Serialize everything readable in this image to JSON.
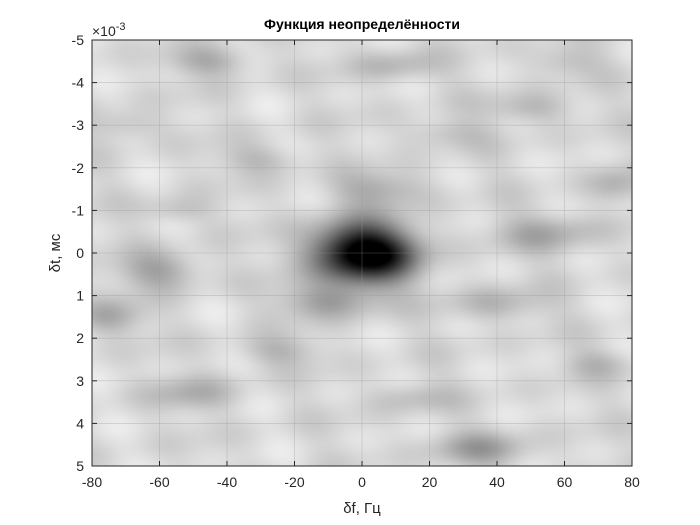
{
  "chart_data": {
    "type": "heatmap",
    "title": "Функция неопределённости",
    "xlabel": "δf, Гц",
    "ylabel": "δt, мс",
    "xlim": [
      -80,
      80
    ],
    "ylim": [
      -5,
      5
    ],
    "y_multiplier": "×10",
    "y_multiplier_exponent": "-3",
    "y_direction": "reverse",
    "x_ticks": [
      "-80",
      "-60",
      "-40",
      "-20",
      "0",
      "20",
      "40",
      "60",
      "80"
    ],
    "y_ticks": [
      "-5",
      "-4",
      "-3",
      "-2",
      "-1",
      "0",
      "1",
      "2",
      "3",
      "4",
      "5"
    ],
    "grid": true,
    "colormap": "gray (dark = high)",
    "peak": {
      "x": 0,
      "y": 0
    },
    "blobs": [
      {
        "x": 0,
        "y": 0,
        "sx": 14,
        "sy": 0.7,
        "a": 1.0
      },
      {
        "x": 10,
        "y": 0.12,
        "sx": 8,
        "sy": 0.45,
        "a": 0.12
      },
      {
        "x": -60,
        "y": 0.4,
        "sx": 12,
        "sy": 0.45,
        "a": 0.22
      },
      {
        "x": -75,
        "y": 1.5,
        "sx": 10,
        "sy": 0.4,
        "a": 0.2
      },
      {
        "x": -10,
        "y": 1.15,
        "sx": 14,
        "sy": 0.4,
        "a": 0.22
      },
      {
        "x": 5,
        "y": -1.5,
        "sx": 14,
        "sy": 0.4,
        "a": 0.18
      },
      {
        "x": 55,
        "y": -0.45,
        "sx": 16,
        "sy": 0.45,
        "a": 0.18
      },
      {
        "x": 75,
        "y": -1.6,
        "sx": 8,
        "sy": 0.4,
        "a": 0.15
      },
      {
        "x": 40,
        "y": 1.2,
        "sx": 14,
        "sy": 0.4,
        "a": 0.15
      },
      {
        "x": -45,
        "y": -4.5,
        "sx": 12,
        "sy": 0.35,
        "a": 0.18
      },
      {
        "x": 10,
        "y": -4.4,
        "sx": 12,
        "sy": 0.35,
        "a": 0.15
      },
      {
        "x": 60,
        "y": -4.5,
        "sx": 10,
        "sy": 0.35,
        "a": 0.12
      },
      {
        "x": 35,
        "y": 4.6,
        "sx": 14,
        "sy": 0.4,
        "a": 0.22
      },
      {
        "x": -50,
        "y": 3.3,
        "sx": 14,
        "sy": 0.4,
        "a": 0.15
      },
      {
        "x": -25,
        "y": 2.3,
        "sx": 12,
        "sy": 0.35,
        "a": 0.14
      },
      {
        "x": 50,
        "y": -3.4,
        "sx": 12,
        "sy": 0.35,
        "a": 0.15
      },
      {
        "x": -30,
        "y": -2.2,
        "sx": 12,
        "sy": 0.35,
        "a": 0.13
      },
      {
        "x": -55,
        "y": -1.0,
        "sx": 10,
        "sy": 0.3,
        "a": 0.12
      },
      {
        "x": 25,
        "y": -2.8,
        "sx": 12,
        "sy": 0.35,
        "a": 0.12
      },
      {
        "x": 70,
        "y": 2.6,
        "sx": 10,
        "sy": 0.35,
        "a": 0.13
      },
      {
        "x": -70,
        "y": -3.0,
        "sx": 10,
        "sy": 0.35,
        "a": 0.12
      },
      {
        "x": 15,
        "y": 3.4,
        "sx": 12,
        "sy": 0.35,
        "a": 0.12
      }
    ]
  }
}
